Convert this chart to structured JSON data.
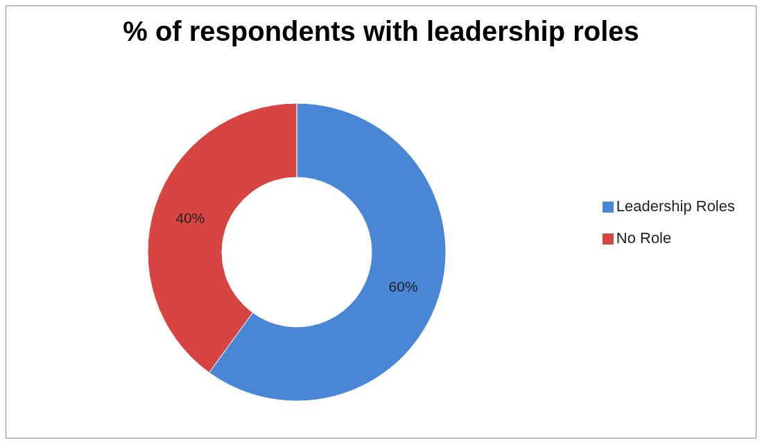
{
  "chart_data": {
    "type": "donut",
    "title": "% of respondents with leadership roles",
    "categories": [
      "Leadership Roles",
      "No Role"
    ],
    "values": [
      60,
      40
    ],
    "colors": [
      "#4a86d6",
      "#d64541"
    ],
    "value_labels": [
      "60%",
      "40%"
    ],
    "legend": "right"
  }
}
